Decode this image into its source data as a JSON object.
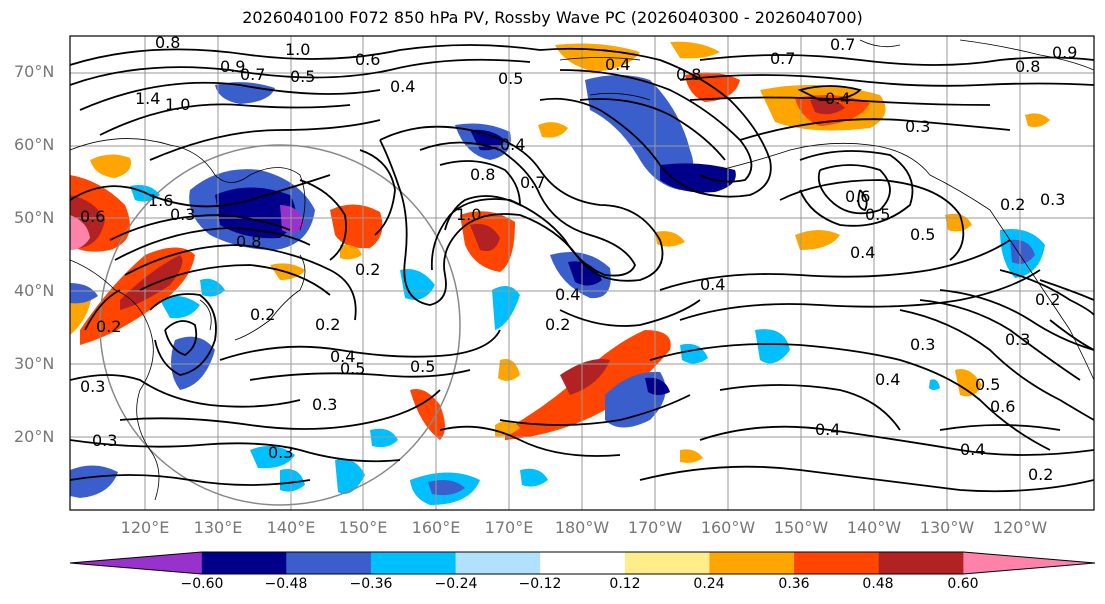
{
  "title": "2026040100 F072 850 hPa PV, Rossby Wave PC (2026040300 - 2026040700)",
  "lat_labels": [
    "70°N",
    "60°N",
    "50°N",
    "40°N",
    "30°N",
    "20°N"
  ],
  "lon_labels": [
    "120°E",
    "130°E",
    "140°E",
    "150°E",
    "160°E",
    "170°E",
    "180°W",
    "170°W",
    "160°W",
    "150°W",
    "140°W",
    "130°W",
    "120°W"
  ],
  "colorbar": {
    "ticks": [
      "−0.60",
      "−0.48",
      "−0.36",
      "−0.24",
      "−0.12",
      "0.12",
      "0.24",
      "0.36",
      "0.48",
      "0.60"
    ],
    "colors": [
      "#9932cc",
      "#00008b",
      "#3a5fcd",
      "#00bfff",
      "#b0e2ff",
      "#ffffff",
      "#ffec8b",
      "#ffa500",
      "#ff4500",
      "#b22222",
      "#ff82ab"
    ]
  },
  "contour_labels": [
    "0.8",
    "1.0",
    "0.5",
    "0.6",
    "0.9",
    "0.7",
    "1.4",
    "1.0",
    "0.4",
    "0.5",
    "0.8",
    "0.9",
    "0.7",
    "0.7",
    "0.3",
    "0.8",
    "0.4",
    "0.8",
    "0.7",
    "1.0",
    "1.6",
    "0.6",
    "0.3",
    "0.8",
    "0.4",
    "0.2",
    "0.2",
    "0.2",
    "0.4",
    "0.5",
    "0.5",
    "0.3",
    "0.3",
    "0.3",
    "0.3",
    "0.2",
    "0.4",
    "0.6",
    "0.5",
    "0.4",
    "0.5",
    "0.4",
    "0.3",
    "0.2",
    "0.3",
    "0.2",
    "0.3",
    "0.5",
    "0.6",
    "0.4",
    "0.4",
    "0.4",
    "0.2",
    "0.4",
    "0.2"
  ]
}
